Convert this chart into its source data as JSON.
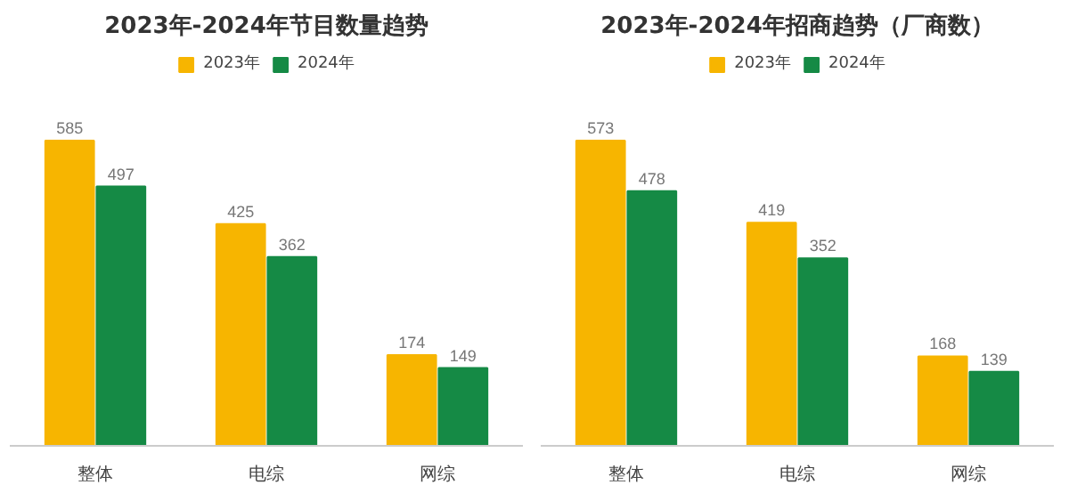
{
  "chart_data": [
    {
      "type": "bar",
      "title": "2023年-2024年节目数量趋势",
      "categories": [
        "整体",
        "电综",
        "网综"
      ],
      "series": [
        {
          "name": "2023年",
          "color": "#f7b500",
          "values": [
            585,
            425,
            174
          ]
        },
        {
          "name": "2024年",
          "color": "#158a45",
          "values": [
            497,
            362,
            149
          ]
        }
      ],
      "data_labels": true,
      "legend": "top",
      "grid": false
    },
    {
      "type": "bar",
      "title": "2023年-2024年招商趋势（厂商数）",
      "categories": [
        "整体",
        "电综",
        "网综"
      ],
      "series": [
        {
          "name": "2023年",
          "color": "#f7b500",
          "values": [
            573,
            419,
            168
          ]
        },
        {
          "name": "2024年",
          "color": "#158a45",
          "values": [
            478,
            352,
            139
          ]
        }
      ],
      "data_labels": true,
      "legend": "top",
      "grid": false
    }
  ]
}
